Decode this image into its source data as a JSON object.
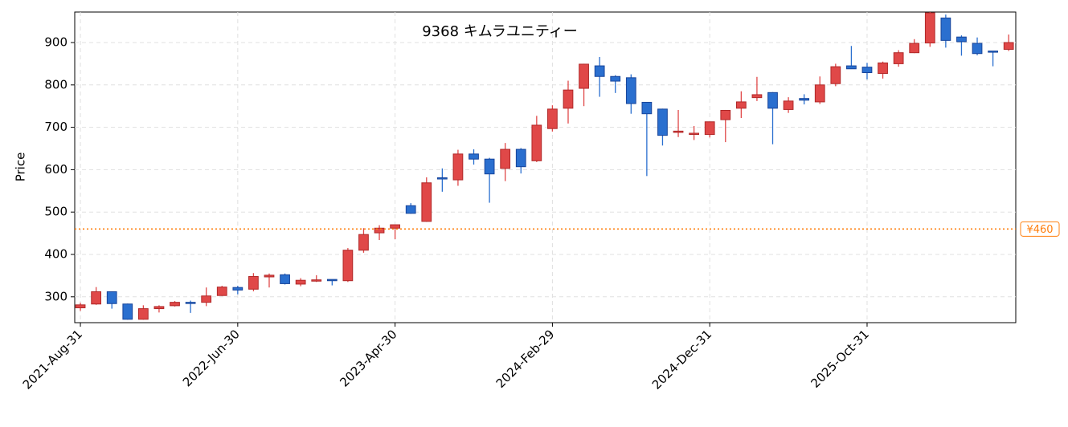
{
  "chart_data": {
    "type": "candlestick",
    "title": "9368 キムラユニティー",
    "y_label": "Price",
    "categories": [
      "2021-Aug-31",
      null,
      null,
      null,
      null,
      null,
      null,
      null,
      null,
      null,
      "2022-Jun-30",
      null,
      null,
      null,
      null,
      null,
      null,
      null,
      null,
      null,
      "2023-Apr-30",
      null,
      null,
      null,
      null,
      null,
      null,
      null,
      null,
      null,
      "2024-Feb-29",
      null,
      null,
      null,
      null,
      null,
      null,
      null,
      null,
      null,
      "2024-Dec-31",
      null,
      null,
      null,
      null,
      null,
      null,
      null,
      null,
      null,
      "2025-Oct-31",
      null,
      null,
      null,
      null,
      null,
      null,
      null,
      null,
      null
    ],
    "open": [
      274,
      283,
      312,
      283,
      247,
      272,
      279,
      287,
      287,
      303,
      322,
      318,
      347,
      352,
      330,
      337,
      341,
      338,
      410,
      451,
      462,
      515,
      478,
      581,
      576,
      637,
      625,
      603,
      648,
      621,
      697,
      745,
      792,
      845,
      820,
      817,
      759,
      743,
      688,
      684,
      683,
      718,
      745,
      770,
      782,
      742,
      768,
      760,
      803,
      845,
      842,
      827,
      850,
      876,
      899,
      958,
      913,
      898,
      880,
      884
    ],
    "high": [
      286,
      323,
      313,
      284,
      280,
      280,
      290,
      291,
      322,
      326,
      326,
      356,
      355,
      355,
      344,
      351,
      341,
      415,
      462,
      469,
      470,
      521,
      582,
      603,
      647,
      648,
      628,
      663,
      651,
      727,
      752,
      810,
      850,
      866,
      823,
      825,
      759,
      744,
      741,
      703,
      713,
      741,
      785,
      819,
      783,
      771,
      778,
      820,
      850,
      892,
      852,
      855,
      882,
      908,
      972,
      966,
      917,
      912,
      880,
      919
    ],
    "low": [
      267,
      281,
      272,
      246,
      246,
      263,
      277,
      262,
      278,
      302,
      306,
      313,
      322,
      329,
      325,
      335,
      327,
      335,
      404,
      434,
      436,
      496,
      477,
      548,
      562,
      612,
      522,
      573,
      591,
      618,
      690,
      709,
      750,
      772,
      781,
      732,
      585,
      657,
      677,
      670,
      676,
      665,
      722,
      762,
      660,
      734,
      754,
      755,
      797,
      838,
      813,
      815,
      843,
      875,
      890,
      888,
      869,
      870,
      844,
      880
    ],
    "close": [
      281,
      312,
      284,
      247,
      272,
      277,
      287,
      285,
      302,
      323,
      316,
      348,
      351,
      331,
      339,
      340,
      338,
      410,
      447,
      462,
      470,
      497,
      569,
      578,
      637,
      625,
      590,
      648,
      607,
      705,
      743,
      788,
      849,
      820,
      809,
      756,
      732,
      681,
      691,
      686,
      713,
      740,
      760,
      777,
      745,
      762,
      764,
      800,
      843,
      838,
      829,
      852,
      876,
      898,
      970,
      905,
      902,
      874,
      878,
      900
    ],
    "up_color": "#e04848",
    "down_color": "#2a6fcf",
    "ylim": [
      239,
      972
    ],
    "yticks": [
      300,
      400,
      500,
      600,
      700,
      800,
      900
    ],
    "grid": true,
    "reference_line": {
      "value": 460,
      "label": "¥460",
      "color": "#ff7f0e"
    }
  }
}
